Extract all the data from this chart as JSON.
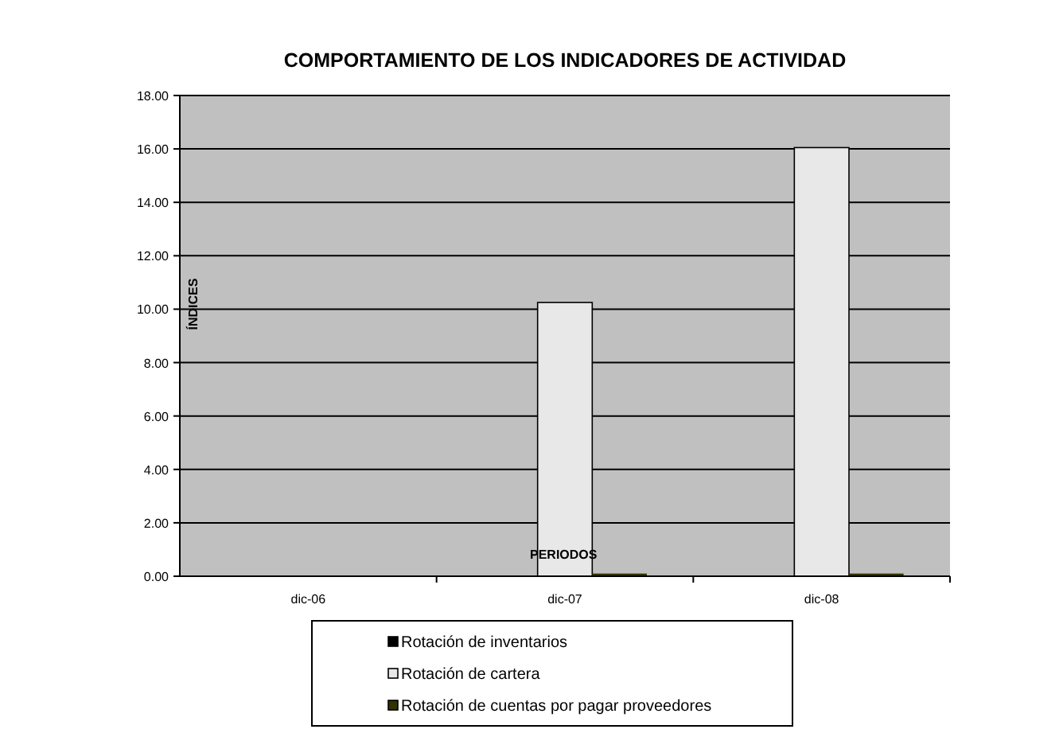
{
  "chart_data": {
    "type": "bar",
    "title": "COMPORTAMIENTO DE LOS INDICADORES DE ACTIVIDAD",
    "xlabel": "PERIODOS",
    "ylabel": "ÍNDICES",
    "categories": [
      "dic-06",
      "dic-07",
      "dic-08"
    ],
    "series": [
      {
        "name": "Rotación de inventarios",
        "color": "#000000",
        "values": [
          0,
          0,
          0
        ]
      },
      {
        "name": "Rotación de cartera",
        "color": "#e8e8e8",
        "values": [
          0,
          10.25,
          16.05
        ]
      },
      {
        "name": "Rotación de cuentas por pagar proveedores",
        "color": "#333300",
        "values": [
          0,
          0.1,
          0.1
        ]
      }
    ],
    "ylim": [
      0,
      18
    ],
    "yticks": [
      {
        "value": 0,
        "label": "0.00"
      },
      {
        "value": 2,
        "label": "2.00"
      },
      {
        "value": 4,
        "label": "4.00"
      },
      {
        "value": 6,
        "label": "6.00"
      },
      {
        "value": 8,
        "label": "8.00"
      },
      {
        "value": 10,
        "label": "10.00"
      },
      {
        "value": 12,
        "label": "12.00"
      },
      {
        "value": 14,
        "label": "14.00"
      },
      {
        "value": 16,
        "label": "16.00"
      },
      {
        "value": 18,
        "label": "18.00"
      }
    ],
    "grid": "y",
    "legend": "bottom"
  }
}
